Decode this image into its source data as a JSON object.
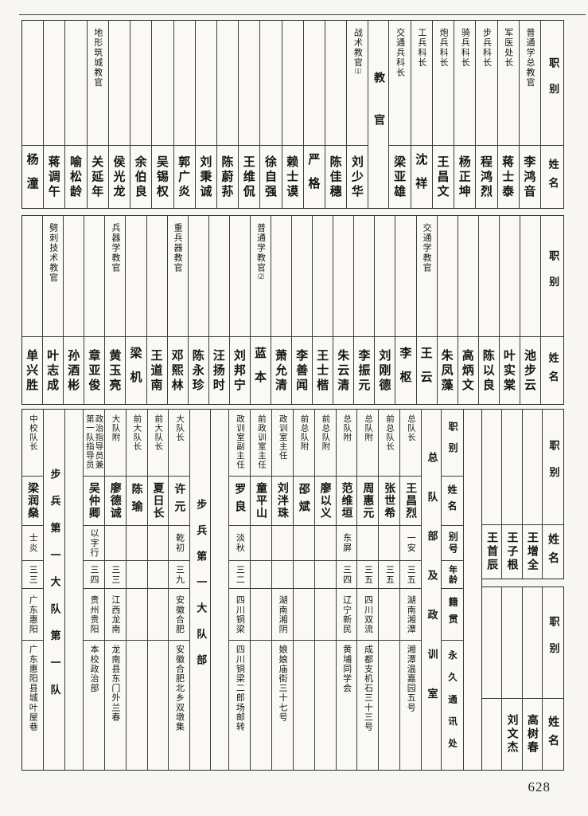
{
  "page": {
    "number": "628"
  },
  "labels": {
    "position": "职别",
    "name": "姓名",
    "alias": "别号",
    "age": "年龄",
    "origin": "籍贯",
    "address": "永久通讯处",
    "instructor_group": "教官",
    "hq_group": "总队部及政训室",
    "battalion_hq_group": "步兵第一大队部",
    "first_company_group": "步兵第一大队第一队"
  },
  "instructor_table_upper": {
    "columns": [
      {
        "position": "普通学总教官",
        "name": "李鸿音"
      },
      {
        "position": "军医处长",
        "name": "蒋士泰"
      },
      {
        "position": "步兵科长",
        "name": "程鸿烈"
      },
      {
        "position": "骑兵科长",
        "name": "杨正坤"
      },
      {
        "position": "炮兵科长",
        "name": "王昌文"
      },
      {
        "position": "工兵科长",
        "name": "沈祥"
      },
      {
        "position": "交通兵科长",
        "name": "梁亚雄"
      },
      {
        "group_label_key": "instructor_group"
      },
      {
        "position": "战术教官",
        "footnote": "⑴",
        "name": "刘少华"
      },
      {
        "name": "陈佳穗"
      },
      {
        "name": "严格"
      },
      {
        "name": "赖士谟"
      },
      {
        "name": "徐自强"
      },
      {
        "name": "王维侃"
      },
      {
        "name": "陈蔚荪"
      },
      {
        "name": "刘秉诚"
      },
      {
        "name": "郭广炎"
      },
      {
        "name": "吴锡权"
      },
      {
        "name": "余伯良"
      },
      {
        "name": "侯光龙"
      },
      {
        "position": "地形筑城教官",
        "name": "关延年"
      },
      {
        "name": "喻松龄"
      },
      {
        "name": "蒋调午"
      },
      {
        "name": "杨潼"
      }
    ]
  },
  "instructor_table_lower": {
    "columns": [
      {
        "name": "池步云"
      },
      {
        "name": "叶实棠"
      },
      {
        "name": "陈以良"
      },
      {
        "name": "高炳文"
      },
      {
        "name": "朱凤藻"
      },
      {
        "position": "交通学教官",
        "name": "王云"
      },
      {
        "name": "李枢"
      },
      {
        "name": "刘刚德"
      },
      {
        "name": "李振元"
      },
      {
        "name": "朱云清"
      },
      {
        "name": "王士楷"
      },
      {
        "name": "李善闻"
      },
      {
        "name": "萧允清"
      },
      {
        "position": "普通学教官",
        "footnote": "⑵",
        "name": "蓝本"
      },
      {
        "name": "刘邦宁"
      },
      {
        "name": "汪扬时"
      },
      {
        "name": "陈永珍"
      },
      {
        "position": "重兵器教官",
        "name": "邓熙林"
      },
      {
        "name": "王道南"
      },
      {
        "name": "梁机"
      },
      {
        "position": "兵器学教官",
        "name": "黄玉亮"
      },
      {
        "name": "章亚俊"
      },
      {
        "name": "孙酒彬"
      },
      {
        "position": "劈刺技术教官",
        "name": "叶志成"
      },
      {
        "name": "单兴胜"
      }
    ]
  },
  "bottom_section": {
    "side_tables": [
      {
        "names": [
          "王增全",
          "王子根",
          "王首辰"
        ]
      },
      {
        "names": [
          "高树春",
          "刘文杰",
          ""
        ]
      }
    ],
    "main_columns": [
      {
        "empty": true
      },
      {
        "header": true
      },
      {
        "group_label_key": "hq_group"
      },
      {
        "position": "总队长",
        "name": "王昌烈",
        "alias": "一安",
        "age": "三五",
        "origin": "湖南湘潭",
        "address": "湘潭温嘉园五号"
      },
      {
        "position": "前总队长",
        "name": "张世希",
        "age": "三五"
      },
      {
        "position": "总队附",
        "name": "周惠元",
        "age": "三五",
        "origin": "四川双流",
        "address": "成都支机石三十三号"
      },
      {
        "position": "总队附",
        "name": "范维垣",
        "alias": "东屏",
        "age": "三四",
        "origin": "辽宁新民",
        "address": "黄埔同学会"
      },
      {
        "position": "前总队附",
        "name": "廖以义"
      },
      {
        "position": "前总队附",
        "name": "邵斌"
      },
      {
        "position": "政训室主任",
        "name": "刘泮珠",
        "origin": "湖南湘阴",
        "address": "娘娘庙街三十七号"
      },
      {
        "position": "前政训室主任",
        "name": "童平山"
      },
      {
        "position": "政训室副主任",
        "name": "罗良",
        "alias": "淡秋",
        "age": "三二",
        "origin": "四川铜梁",
        "address": "四川铜梁二郎场邮转"
      },
      {
        "empty": true
      },
      {
        "group_label_key": "battalion_hq_group"
      },
      {
        "position": "大队长",
        "name": "许元",
        "alias": "乾初",
        "age": "三九",
        "origin": "安徽合肥",
        "address": "安徽合肥北乡双墩集"
      },
      {
        "position": "前大队长",
        "name": "夏日长"
      },
      {
        "position": "前大队长",
        "name": "陈瑜"
      },
      {
        "position": "大队附",
        "name": "廖德诚",
        "age": "三三",
        "origin": "江西龙南",
        "address": "龙南县东门外兰春"
      },
      {
        "position": "政治指导员兼第一队指导员",
        "name": "吴仲卿",
        "alias": "以字行",
        "age": "三四",
        "origin": "贵州贵阳",
        "address": "本校政治部"
      },
      {
        "empty": true
      },
      {
        "group_label_key": "first_company_group"
      },
      {
        "position": "中校队长",
        "name": "梁润燊",
        "alias": "士炎",
        "age": "三三",
        "origin": "广东惠阳",
        "address": "广东惠阳县城叶屋巷"
      }
    ]
  }
}
